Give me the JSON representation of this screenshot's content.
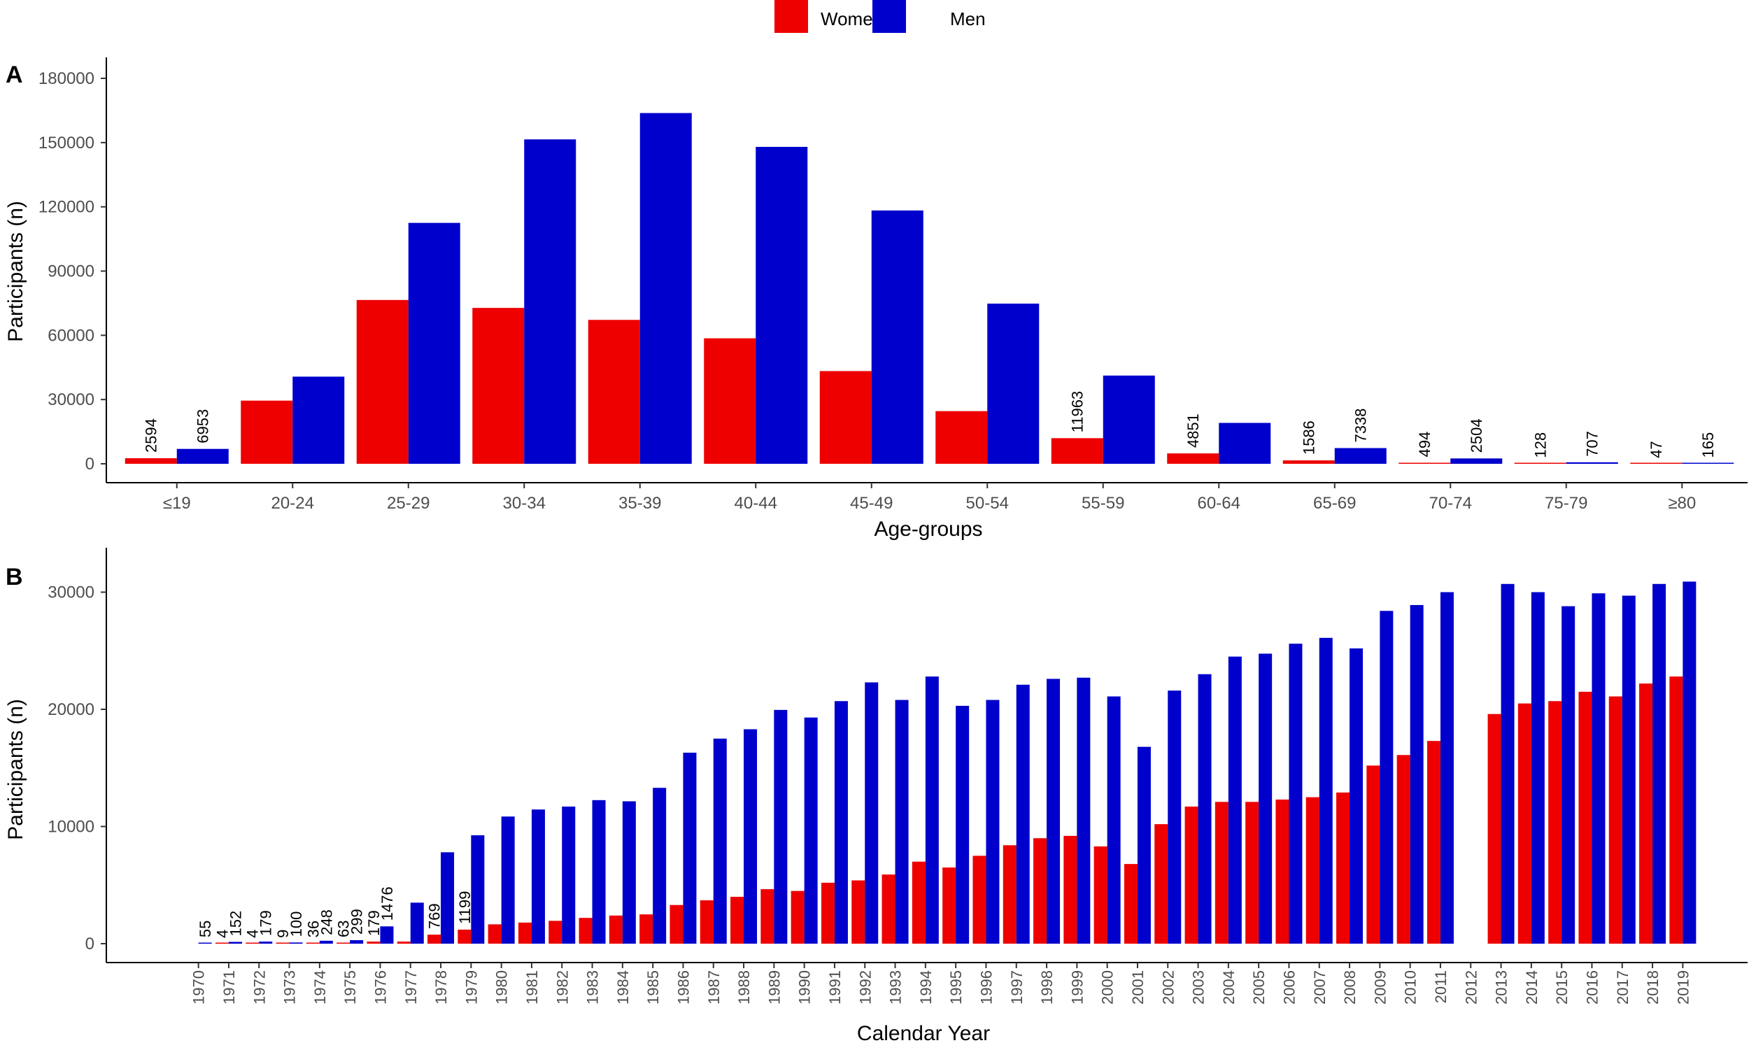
{
  "legend": {
    "entries": [
      {
        "name": "Women",
        "color": "#ee0000"
      },
      {
        "name": "Men",
        "color": "#0000cd"
      }
    ]
  },
  "chart_data": [
    {
      "type": "bar",
      "panel_label": "A",
      "xlabel": "Age-groups",
      "ylabel": "Participants (n)",
      "ylim": [
        0,
        180000
      ],
      "yticks": [
        0,
        30000,
        60000,
        90000,
        120000,
        150000,
        180000
      ],
      "categories": [
        "≤19",
        "20-24",
        "25-29",
        "30-34",
        "35-39",
        "40-44",
        "45-49",
        "50-54",
        "55-59",
        "60-64",
        "65-69",
        "70-74",
        "75-79",
        "≥80"
      ],
      "series": [
        {
          "name": "Women",
          "color": "#ee0000",
          "values": [
            2594,
            29500,
            76500,
            72800,
            67200,
            58600,
            43300,
            24600,
            11963,
            4851,
            1586,
            494,
            128,
            47
          ]
        },
        {
          "name": "Men",
          "color": "#0000cd",
          "values": [
            6953,
            40700,
            112500,
            151500,
            163800,
            148000,
            118300,
            74800,
            41200,
            19100,
            7338,
            2504,
            707,
            165
          ]
        }
      ],
      "data_labels": [
        {
          "series": "Women",
          "category": "≤19",
          "text": "2594"
        },
        {
          "series": "Men",
          "category": "≤19",
          "text": "6953"
        },
        {
          "series": "Women",
          "category": "55-59",
          "text": "11963"
        },
        {
          "series": "Women",
          "category": "60-64",
          "text": "4851"
        },
        {
          "series": "Women",
          "category": "65-69",
          "text": "1586"
        },
        {
          "series": "Men",
          "category": "65-69",
          "text": "7338"
        },
        {
          "series": "Women",
          "category": "70-74",
          "text": "494"
        },
        {
          "series": "Men",
          "category": "70-74",
          "text": "2504"
        },
        {
          "series": "Women",
          "category": "75-79",
          "text": "128"
        },
        {
          "series": "Men",
          "category": "75-79",
          "text": "707"
        },
        {
          "series": "Women",
          "category": "≥80",
          "text": "47"
        },
        {
          "series": "Men",
          "category": "≥80",
          "text": "165"
        }
      ]
    },
    {
      "type": "bar",
      "panel_label": "B",
      "xlabel": "Calendar Year",
      "ylabel": "Participants (n)",
      "ylim": [
        0,
        32000
      ],
      "yticks": [
        0,
        10000,
        20000,
        30000
      ],
      "categories": [
        "1970",
        "1971",
        "1972",
        "1973",
        "1974",
        "1975",
        "1976",
        "1977",
        "1978",
        "1979",
        "1980",
        "1981",
        "1982",
        "1983",
        "1984",
        "1985",
        "1986",
        "1987",
        "1988",
        "1989",
        "1990",
        "1991",
        "1992",
        "1993",
        "1994",
        "1995",
        "1996",
        "1997",
        "1998",
        "1999",
        "2000",
        "2001",
        "2002",
        "2003",
        "2004",
        "2005",
        "2006",
        "2007",
        "2008",
        "2009",
        "2010",
        "2011",
        "2012",
        "2013",
        "2014",
        "2015",
        "2016",
        "2017",
        "2018",
        "2019"
      ],
      "series": [
        {
          "name": "Women",
          "color": "#ee0000",
          "values": [
            0,
            4,
            4,
            9,
            36,
            63,
            179,
            180,
            769,
            1199,
            1650,
            1800,
            1950,
            2200,
            2400,
            2500,
            3300,
            3700,
            4000,
            4650,
            4500,
            5200,
            5400,
            5900,
            7000,
            6500,
            7500,
            8400,
            9000,
            9200,
            8300,
            6800,
            10200,
            11700,
            12100,
            12100,
            12300,
            12500,
            12900,
            15200,
            16100,
            17300,
            0,
            19600,
            20500,
            20700,
            21500,
            21100,
            22200,
            22800
          ]
        },
        {
          "name": "Men",
          "color": "#0000cd",
          "values": [
            55,
            152,
            179,
            100,
            248,
            299,
            1476,
            3500,
            7800,
            9250,
            10850,
            11450,
            11700,
            12250,
            12150,
            13300,
            16300,
            17500,
            18300,
            19950,
            19300,
            20700,
            22300,
            20800,
            22800,
            20300,
            20800,
            22100,
            22600,
            22700,
            21100,
            16800,
            21600,
            23000,
            24500,
            24750,
            25600,
            26100,
            25200,
            28400,
            28900,
            30000,
            0,
            30700,
            30000,
            28800,
            29900,
            29700,
            30700,
            30900
          ]
        }
      ],
      "data_labels": [
        {
          "series": "Men",
          "category": "1970",
          "text": "55"
        },
        {
          "series": "Women",
          "category": "1971",
          "text": "4"
        },
        {
          "series": "Men",
          "category": "1971",
          "text": "152"
        },
        {
          "series": "Women",
          "category": "1972",
          "text": "4"
        },
        {
          "series": "Men",
          "category": "1972",
          "text": "179"
        },
        {
          "series": "Women",
          "category": "1973",
          "text": "9"
        },
        {
          "series": "Men",
          "category": "1973",
          "text": "100"
        },
        {
          "series": "Women",
          "category": "1974",
          "text": "36"
        },
        {
          "series": "Men",
          "category": "1974",
          "text": "248"
        },
        {
          "series": "Women",
          "category": "1975",
          "text": "63"
        },
        {
          "series": "Men",
          "category": "1975",
          "text": "299"
        },
        {
          "series": "Women",
          "category": "1976",
          "text": "179"
        },
        {
          "series": "Men",
          "category": "1976",
          "text": "1476"
        },
        {
          "series": "Women",
          "category": "1978",
          "text": "769"
        },
        {
          "series": "Women",
          "category": "1979",
          "text": "1199"
        }
      ]
    }
  ]
}
